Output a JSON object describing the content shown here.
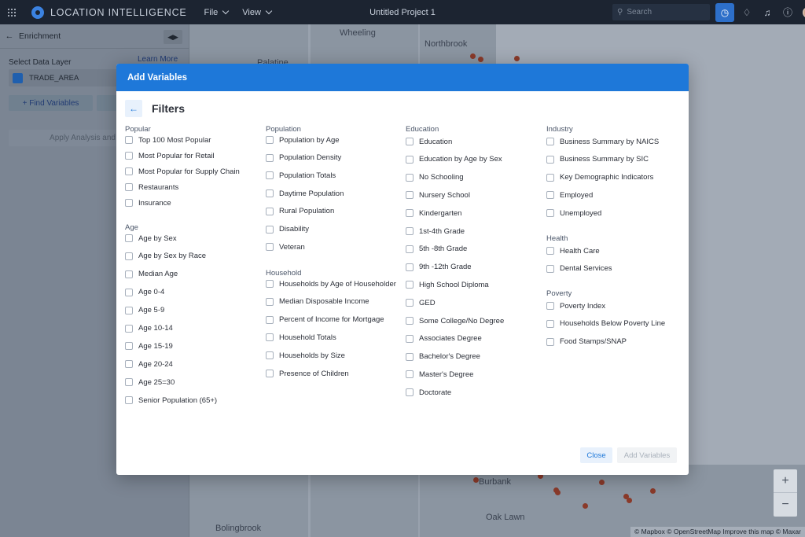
{
  "topbar": {
    "app_name": "LOCATION INTELLIGENCE",
    "menu": [
      "File",
      "View"
    ],
    "project_title": "Untitled Project 1",
    "search_placeholder": "Search"
  },
  "panel": {
    "title": "Enrichment",
    "select_layer_label": "Select Data Layer",
    "learn_more": "Learn More",
    "layer_name": "TRADE_AREA",
    "find_variables": "+ Find Variables",
    "apply_analysis": "Apply Analysis and"
  },
  "map": {
    "places": [
      "Wheeling",
      "Northbrook",
      "Palatine",
      "Burbank",
      "Oak Lawn",
      "Bolingbrook"
    ],
    "attribution": "© Mapbox © OpenStreetMap Improve this map © Maxar"
  },
  "modal": {
    "title": "Add Variables",
    "filters_title": "Filters",
    "close_label": "Close",
    "add_label": "Add Variables",
    "columns": [
      {
        "sections": [
          {
            "title": "Popular",
            "items": [
              "Top 100 Most Popular",
              "Most Popular for Retail",
              "Most Popular for Supply Chain",
              "Restaurants",
              "Insurance"
            ]
          },
          {
            "title": "Age",
            "items": [
              "Age by Sex",
              "Age by Sex by Race",
              "Median Age",
              "Age 0-4",
              "Age 5-9",
              "Age 10-14",
              "Age 15-19",
              "Age  20-24",
              "Age 25=30",
              "Senior Population (65+)"
            ]
          }
        ]
      },
      {
        "sections": [
          {
            "title": "Population",
            "items": [
              "Population by Age",
              "Population Density",
              "Population Totals",
              "Daytime Population",
              "Rural Population",
              "Disability",
              "Veteran"
            ]
          },
          {
            "title": "Household",
            "items": [
              "Households by Age of Householder",
              "Median Disposable Income",
              "Percent of Income for Mortgage",
              "Household Totals",
              "Households by Size",
              "Presence of Children"
            ]
          }
        ]
      },
      {
        "sections": [
          {
            "title": "Education",
            "items": [
              "Education",
              "Education by Age by Sex",
              "No Schooling",
              "Nursery School",
              "Kindergarten",
              "1st-4th Grade",
              "5th -8th Grade",
              "9th -12th Grade",
              "High School Diploma",
              "GED",
              "Some College/No Degree",
              "Associates Degree",
              "Bachelor's Degree",
              "Master's Degree",
              "Doctorate"
            ]
          }
        ]
      },
      {
        "sections": [
          {
            "title": "Industry",
            "items": [
              "Business Summary by NAICS",
              "Business Summary by SIC",
              "Key Demographic Indicators",
              "Employed",
              "Unemployed"
            ]
          },
          {
            "title": "Health",
            "items": [
              "Health Care",
              "Dental Services"
            ]
          },
          {
            "title": "Poverty",
            "items": [
              "Poverty Index",
              "Households Below Poverty Line",
              "Food Stamps/SNAP"
            ]
          }
        ]
      }
    ]
  }
}
